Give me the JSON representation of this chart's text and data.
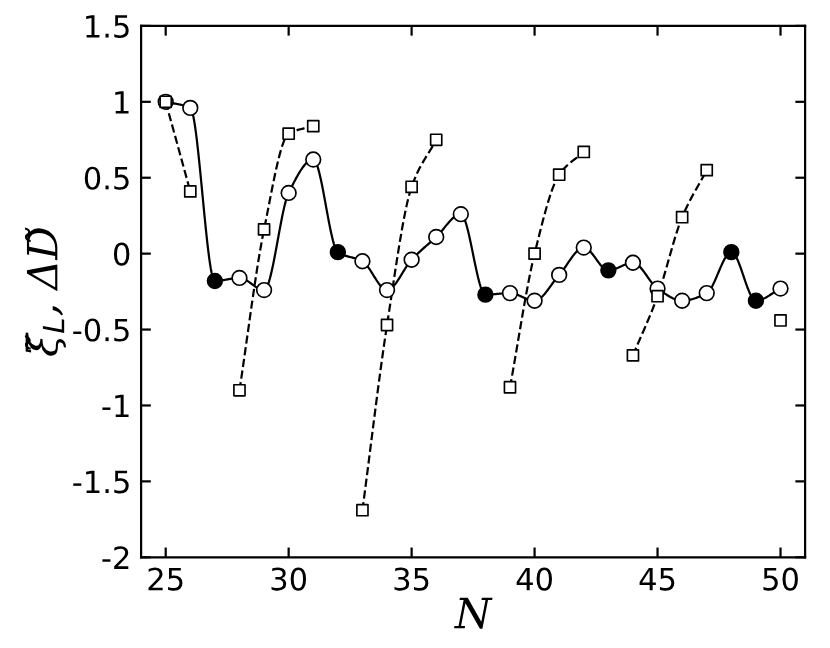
{
  "chart_data": {
    "type": "line",
    "xlabel": "N",
    "ylabel": "ξ̃$_{L}$, ΔD̃",
    "x": [
      25,
      26,
      27,
      28,
      29,
      30,
      31,
      32,
      33,
      34,
      35,
      36,
      37,
      38,
      39,
      40,
      41,
      42,
      43,
      44,
      45,
      46,
      47,
      48,
      49,
      50
    ],
    "series": [
      {
        "color": "#000000",
        "line_style": "solid",
        "marker": "circle",
        "values": [
          1.0,
          0.96,
          -0.18,
          -0.16,
          -0.24,
          0.4,
          0.62,
          0.01,
          -0.05,
          -0.24,
          -0.04,
          0.11,
          0.26,
          -0.27,
          -0.26,
          -0.31,
          -0.14,
          0.04,
          -0.11,
          -0.06,
          -0.23,
          -0.31,
          -0.26,
          0.01,
          -0.31,
          -0.23
        ],
        "colors": [
          "#ffffff",
          "#ffffff",
          "#000000",
          "#ffffff",
          "#ffffff",
          "#ffffff",
          "#ffffff",
          "#000000",
          "#ffffff",
          "#ffffff",
          "#ffffff",
          "#ffffff",
          "#ffffff",
          "#000000",
          "#ffffff",
          "#ffffff",
          "#ffffff",
          "#ffffff",
          "#000000",
          "#ffffff",
          "#ffffff",
          "#ffffff",
          "#ffffff",
          "#000000",
          "#000000",
          "#ffffff"
        ]
      },
      {
        "color": "#000000",
        "line_style": "dashed",
        "marker": "square",
        "values": [
          1.0,
          0.41,
          null,
          -0.9,
          0.16,
          0.79,
          0.84,
          null,
          -1.69,
          -0.47,
          0.44,
          0.75,
          null,
          null,
          -0.88,
          0.0,
          0.52,
          0.67,
          null,
          -0.67,
          -0.28,
          0.24,
          0.55,
          null,
          null,
          -0.44
        ]
      }
    ],
    "xlim": [
      24,
      51
    ],
    "ylim": [
      -2,
      1.5
    ],
    "xticks": [
      25,
      30,
      35,
      40,
      45,
      50
    ],
    "yticks": [
      -2,
      -1.5,
      -1,
      -0.5,
      0,
      0.5,
      1,
      1.5
    ],
    "grid": false,
    "legend": false
  }
}
